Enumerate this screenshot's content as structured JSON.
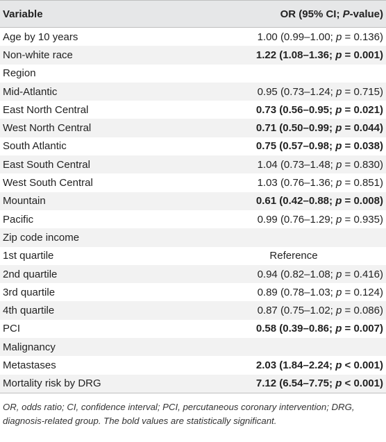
{
  "header": {
    "variable": "Variable",
    "or_prefix": "OR (95% CI; ",
    "or_italic": "P",
    "or_suffix": "-value)"
  },
  "rows": [
    {
      "label": "Age by 10 years",
      "value": "1.00 (0.99–1.00; p = 0.136)",
      "bold": false
    },
    {
      "label": "Non-white race",
      "value": "1.22 (1.08–1.36; p = 0.001)",
      "bold": true
    },
    {
      "label": "Region",
      "value": "",
      "bold": false
    },
    {
      "label": "Mid-Atlantic",
      "value": "0.95 (0.73–1.24; p = 0.715)",
      "bold": false
    },
    {
      "label": "East North Central",
      "value": "0.73 (0.56–0.95; p = 0.021)",
      "bold": true
    },
    {
      "label": "West North Central",
      "value": "0.71 (0.50–0.99; p = 0.044)",
      "bold": true
    },
    {
      "label": "South Atlantic",
      "value": "0.75 (0.57–0.98; p = 0.038)",
      "bold": true
    },
    {
      "label": "East South Central",
      "value": "1.04 (0.73–1.48; p = 0.830)",
      "bold": false
    },
    {
      "label": "West South Central",
      "value": "1.03 (0.76–1.36; p = 0.851)",
      "bold": false
    },
    {
      "label": "Mountain",
      "value": "0.61 (0.42–0.88; p = 0.008)",
      "bold": true
    },
    {
      "label": "Pacific",
      "value": "0.99 (0.76–1.29; p = 0.935)",
      "bold": false
    },
    {
      "label": "Zip code income",
      "value": "",
      "bold": false
    },
    {
      "label": "1st quartile",
      "value": "Reference",
      "bold": false,
      "center": true
    },
    {
      "label": "2nd quartile",
      "value": "0.94 (0.82–1.08; p = 0.416)",
      "bold": false
    },
    {
      "label": "3rd quartile",
      "value": "0.89 (0.78–1.03; p = 0.124)",
      "bold": false
    },
    {
      "label": "4th quartile",
      "value": "0.87 (0.75–1.02; p = 0.086)",
      "bold": false
    },
    {
      "label": "PCI",
      "value": "0.58 (0.39–0.86; p = 0.007)",
      "bold": true
    },
    {
      "label": "Malignancy",
      "value": "",
      "bold": false
    },
    {
      "label": "Metastases",
      "value": "2.03 (1.84–2.24; p < 0.001)",
      "bold": true
    },
    {
      "label": "Mortality risk by DRG",
      "value": "7.12 (6.54–7.75; p < 0.001)",
      "bold": true
    }
  ],
  "footnote": "OR, odds ratio; CI, confidence interval; PCI, percutaneous coronary intervention; DRG, diagnosis-related group. The bold values are statistically significant."
}
